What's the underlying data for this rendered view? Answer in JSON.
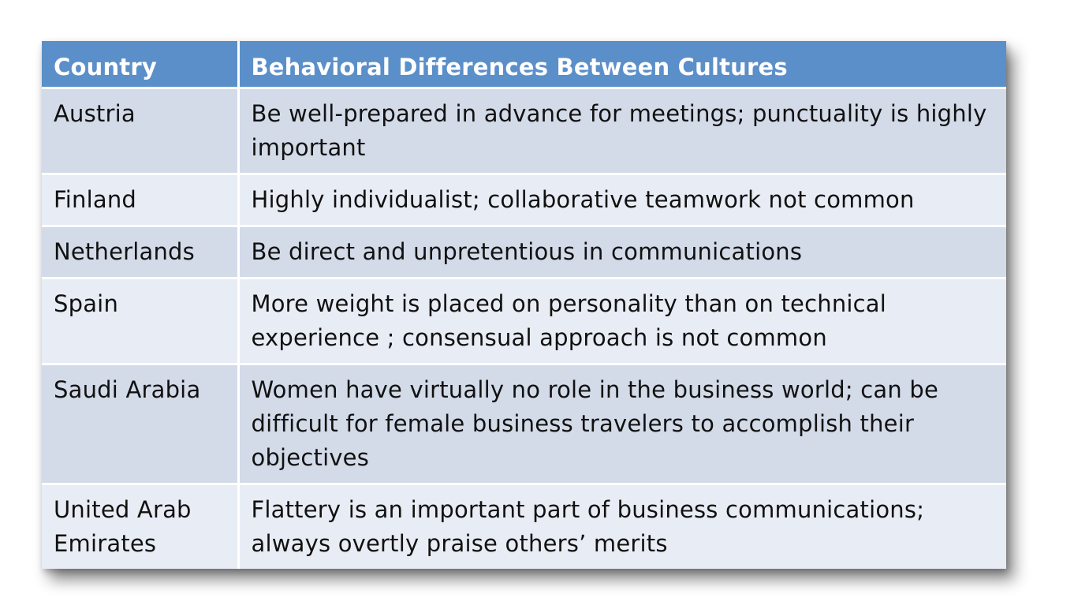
{
  "table": {
    "headers": [
      "Country",
      "Behavioral Differences Between Cultures"
    ],
    "rows": [
      {
        "country": "Austria",
        "behavior": "Be well-prepared in advance for meetings; punctuality is highly important"
      },
      {
        "country": "Finland",
        "behavior": "Highly individualist; collaborative teamwork not common"
      },
      {
        "country": "Netherlands",
        "behavior": "Be direct  and unpretentious in communications"
      },
      {
        "country": "Spain",
        "behavior": "More weight is placed on personality than on technical experience ; consensual approach is not common"
      },
      {
        "country": "Saudi Arabia",
        "behavior": "Women have virtually no role in the business world; can be difficult for female business travelers to accomplish their objectives"
      },
      {
        "country": "United Arab Emirates",
        "behavior": "Flattery is an important part of business communications; always  overtly praise others’ merits"
      }
    ]
  },
  "colors": {
    "header_bg": "#5b8fc9",
    "row_dark": "#d3dae8",
    "row_light": "#e8ecf4"
  }
}
